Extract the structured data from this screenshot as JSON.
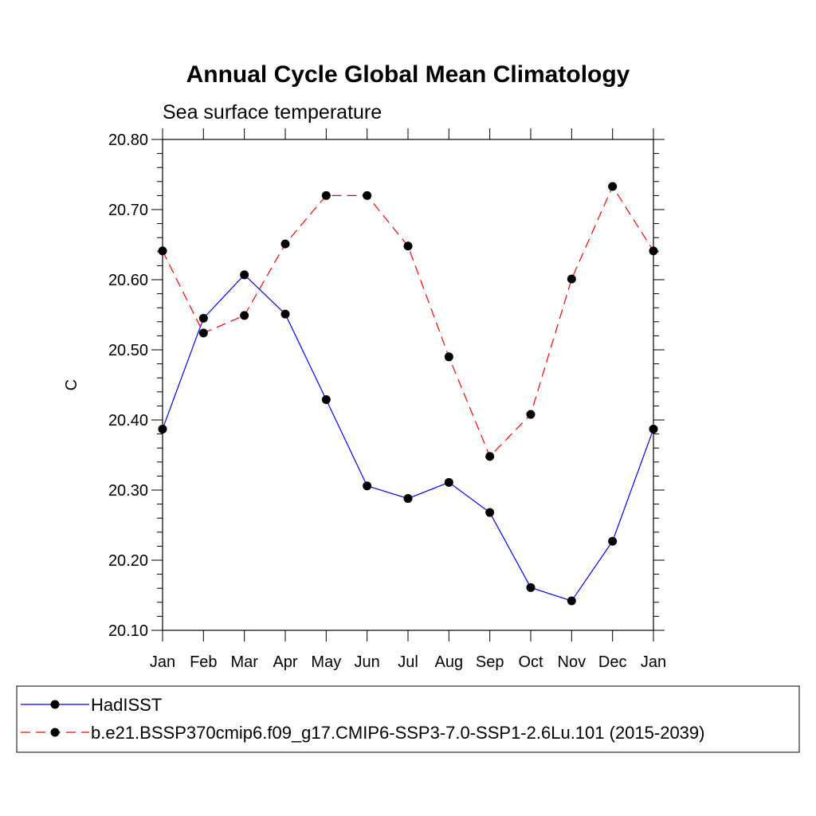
{
  "chart_data": {
    "type": "line",
    "title": "Annual Cycle Global Mean Climatology",
    "subtitle": "Sea surface temperature",
    "ylabel": "C",
    "xlabel": "",
    "categories": [
      "Jan",
      "Feb",
      "Mar",
      "Apr",
      "May",
      "Jun",
      "Jul",
      "Aug",
      "Sep",
      "Oct",
      "Nov",
      "Dec",
      "Jan"
    ],
    "ylim": [
      20.1,
      20.8
    ],
    "yticks": [
      "20.10",
      "20.20",
      "20.30",
      "20.40",
      "20.50",
      "20.60",
      "20.70",
      "20.80"
    ],
    "grid": false,
    "legend_position": "bottom",
    "series": [
      {
        "name": "HadISST",
        "color": "#0000ff",
        "dash": "solid",
        "marker": "filled-circle",
        "values": [
          20.387,
          20.545,
          20.607,
          20.551,
          20.429,
          20.306,
          20.288,
          20.311,
          20.268,
          20.161,
          20.142,
          20.227,
          20.387
        ]
      },
      {
        "name": "b.e21.BSSP370cmip6.f09_g17.CMIP6-SSP3-7.0-SSP1-2.6Lu.101 (2015-2039)",
        "color": "#ff0000",
        "dash": "dashed",
        "marker": "filled-circle",
        "values": [
          20.641,
          20.524,
          20.549,
          20.651,
          20.72,
          20.72,
          20.648,
          20.49,
          20.348,
          20.408,
          20.601,
          20.733,
          20.641
        ]
      }
    ]
  }
}
